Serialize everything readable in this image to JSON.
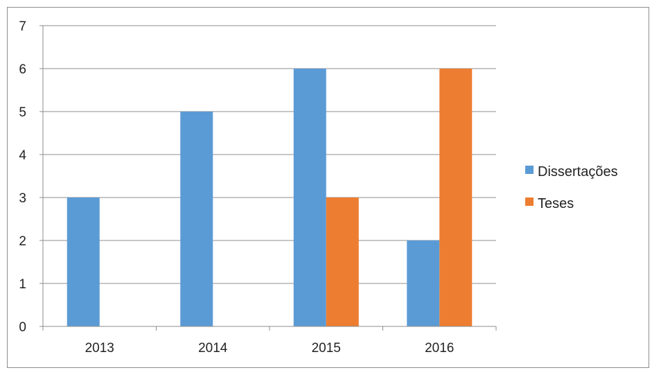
{
  "chart_data": {
    "type": "bar",
    "categories": [
      "2013",
      "2014",
      "2015",
      "2016"
    ],
    "series": [
      {
        "name": "Dissertações",
        "values": [
          3,
          5,
          6,
          2
        ],
        "color": "#5b9bd5"
      },
      {
        "name": "Teses",
        "values": [
          0,
          0,
          3,
          6
        ],
        "color": "#ed7d31"
      }
    ],
    "title": "",
    "xlabel": "",
    "ylabel": "",
    "ylim": [
      0,
      7
    ],
    "yticks": [
      "0",
      "1",
      "2",
      "3",
      "4",
      "5",
      "6",
      "7"
    ],
    "grid": true,
    "legend_position": "right"
  }
}
